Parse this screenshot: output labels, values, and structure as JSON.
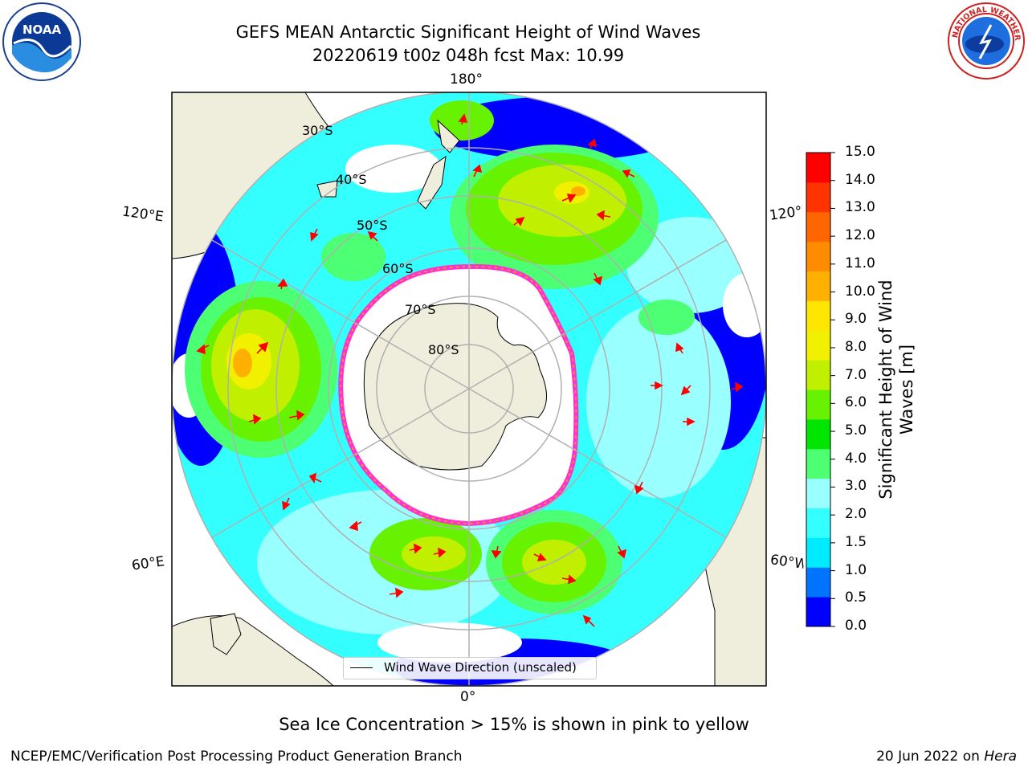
{
  "title": {
    "line1": "GEFS MEAN Antarctic Significant Height of Wind Waves",
    "line2": "20220619 t00z 048h fcst   Max: 10.99"
  },
  "map": {
    "projection": "south polar stereographic",
    "lon_labels": {
      "top": "180°",
      "bottom": "0°",
      "left_upper": "120°E",
      "left_lower": "60°E",
      "right_upper": "120°W",
      "right_lower": "60°W"
    },
    "lat_labels": [
      "30°S",
      "40°S",
      "50°S",
      "60°S",
      "70°S",
      "80°S"
    ],
    "colors": {
      "land": "#efeedc",
      "ocean_nodata": "#ffffff",
      "sea_ice_edge": "#ff33cc",
      "arrow": "#ff0000",
      "grid": "#b0b0b0"
    }
  },
  "legend": {
    "entry": "Wind Wave Direction (unscaled)"
  },
  "colorbar": {
    "label_line1": "Significant Height of Wind",
    "label_line2": "Waves [m]",
    "ticks": [
      "15.0",
      "14.0",
      "13.0",
      "12.0",
      "11.0",
      "10.0",
      "9.0",
      "8.0",
      "7.0",
      "6.0",
      "5.0",
      "4.0",
      "3.0",
      "2.0",
      "1.5",
      "1.0",
      "0.5",
      "0.0"
    ],
    "colors_bottom_to_top": [
      "#0000ff",
      "#0073ff",
      "#00ebff",
      "#33ffff",
      "#99ffff",
      "#4dff73",
      "#00e600",
      "#66f200",
      "#c0f000",
      "#f0f000",
      "#ffe600",
      "#ffb000",
      "#ff8c00",
      "#ff6600",
      "#ff3300",
      "#ff0000"
    ]
  },
  "note": "Sea Ice Concentration > 15% is shown in pink to yellow",
  "footer": {
    "left": "NCEP/EMC/Verification Post Processing Product Generation Branch",
    "right_date": "20 Jun 2022 on ",
    "right_host": "Hera"
  },
  "logos": {
    "noaa_text": "NOAA",
    "nws_text": "NATIONAL WEATHER SERVICE"
  }
}
